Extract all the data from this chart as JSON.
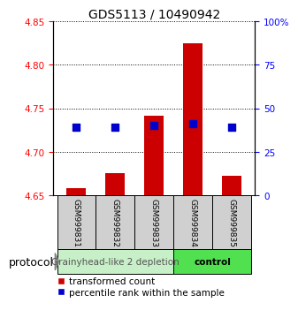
{
  "title": "GDS5113 / 10490942",
  "samples": [
    "GSM999831",
    "GSM999832",
    "GSM999833",
    "GSM999834",
    "GSM999835"
  ],
  "red_bar_tops": [
    4.658,
    4.675,
    4.742,
    4.825,
    4.672
  ],
  "red_bar_base": 4.65,
  "blue_square_values": [
    4.728,
    4.728,
    4.73,
    4.732,
    4.728
  ],
  "ylim_left": [
    4.65,
    4.85
  ],
  "ylim_right": [
    0,
    100
  ],
  "yticks_left": [
    4.65,
    4.7,
    4.75,
    4.8,
    4.85
  ],
  "yticks_right": [
    0,
    25,
    50,
    75,
    100
  ],
  "ytick_labels_right": [
    "0",
    "25",
    "50",
    "75",
    "100%"
  ],
  "group1_samples": [
    0,
    1,
    2
  ],
  "group2_samples": [
    3,
    4
  ],
  "group1_label": "Grainyhead-like 2 depletion",
  "group2_label": "control",
  "group1_color": "#c8f0c8",
  "group2_color": "#50e050",
  "protocol_label": "protocol",
  "red_color": "#cc0000",
  "blue_color": "#0000cc",
  "bar_width": 0.5,
  "blue_sq_size": 28,
  "title_fontsize": 10,
  "tick_label_fontsize": 7.5,
  "sample_label_fontsize": 6.5,
  "legend_fontsize": 7.5,
  "group_label_fontsize": 7.5,
  "protocol_fontsize": 9
}
